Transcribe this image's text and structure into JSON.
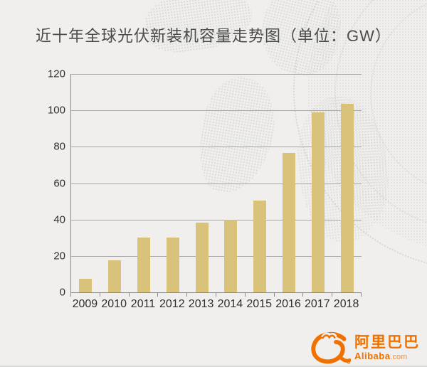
{
  "title": "近十年全球光伏新装机容量走势图（单位：GW）",
  "chart_data": {
    "type": "bar",
    "categories": [
      "2009",
      "2010",
      "2011",
      "2012",
      "2013",
      "2014",
      "2015",
      "2016",
      "2017",
      "2018"
    ],
    "values": [
      7.3,
      17.5,
      30,
      30,
      38.5,
      40,
      50.5,
      76.5,
      99,
      103.5
    ],
    "title": "近十年全球光伏新装机容量走势图（单位：GW）",
    "unit": "GW",
    "xlabel": "",
    "ylabel": "",
    "ylim": [
      0,
      120
    ],
    "yticks": [
      0,
      20,
      40,
      60,
      80,
      100,
      120
    ],
    "grid": true,
    "legend": false,
    "bar_color": "#d9c37b"
  },
  "footer": {
    "brand_cn": "阿里巴巴",
    "brand_en": "Alibaba",
    "brand_domain": ".com"
  },
  "colors": {
    "background": "#f0efee",
    "bar": "#d9c37b",
    "gridline": "#a6a6a6",
    "axis": "#8a8a8a",
    "title_text": "#4b4b49",
    "tick_text": "#2f2f2f",
    "brand_orange": "#f07100",
    "map_dot": "#c6c6c6"
  }
}
